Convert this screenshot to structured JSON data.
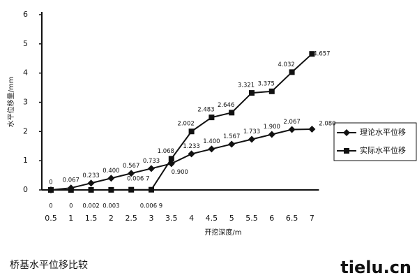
{
  "chart_data": {
    "type": "line",
    "ylabel": "水平位移量/mm",
    "xlabel": "开挖深度/m",
    "caption": "桥基水平位移比较",
    "watermark": "tielu.cn",
    "categories": [
      "0.5",
      "1",
      "1.5",
      "2",
      "2.5",
      "3",
      "3.5",
      "4",
      "4.5",
      "5",
      "5.5",
      "6",
      "6.5",
      "7"
    ],
    "ylim": [
      0,
      6
    ],
    "yticks": [
      0,
      1,
      2,
      3,
      4,
      5,
      6
    ],
    "legend": "right",
    "series": [
      {
        "name": "理论水平位移",
        "color": "#111111",
        "marker": "diamond",
        "values": [
          0,
          0.067,
          0.233,
          0.4,
          0.567,
          0.733,
          0.9,
          1.233,
          1.4,
          1.567,
          1.733,
          1.9,
          2.067,
          2.08
        ],
        "value_labels": [
          "0",
          "0.067",
          "0.233",
          "0.400",
          "0.567",
          "0.733",
          "0.900",
          "1.233",
          "1.400",
          "1.567",
          "1.733",
          "1.900",
          "2.067",
          "2.080"
        ]
      },
      {
        "name": "实际水平位移",
        "color": "#111111",
        "marker": "square",
        "values": [
          0,
          0,
          0.002,
          0.003,
          0.0067,
          0.0069,
          1.068,
          2.002,
          2.483,
          2.646,
          3.321,
          3.375,
          4.032,
          4.657
        ],
        "value_labels": [
          "0",
          "0",
          "0.002",
          "0.003",
          "0.006 7",
          "0.006 9",
          "1.068",
          "2.002",
          "2.483",
          "2.646",
          "3.321",
          "3.375",
          "4.032",
          "4.657"
        ]
      }
    ]
  }
}
